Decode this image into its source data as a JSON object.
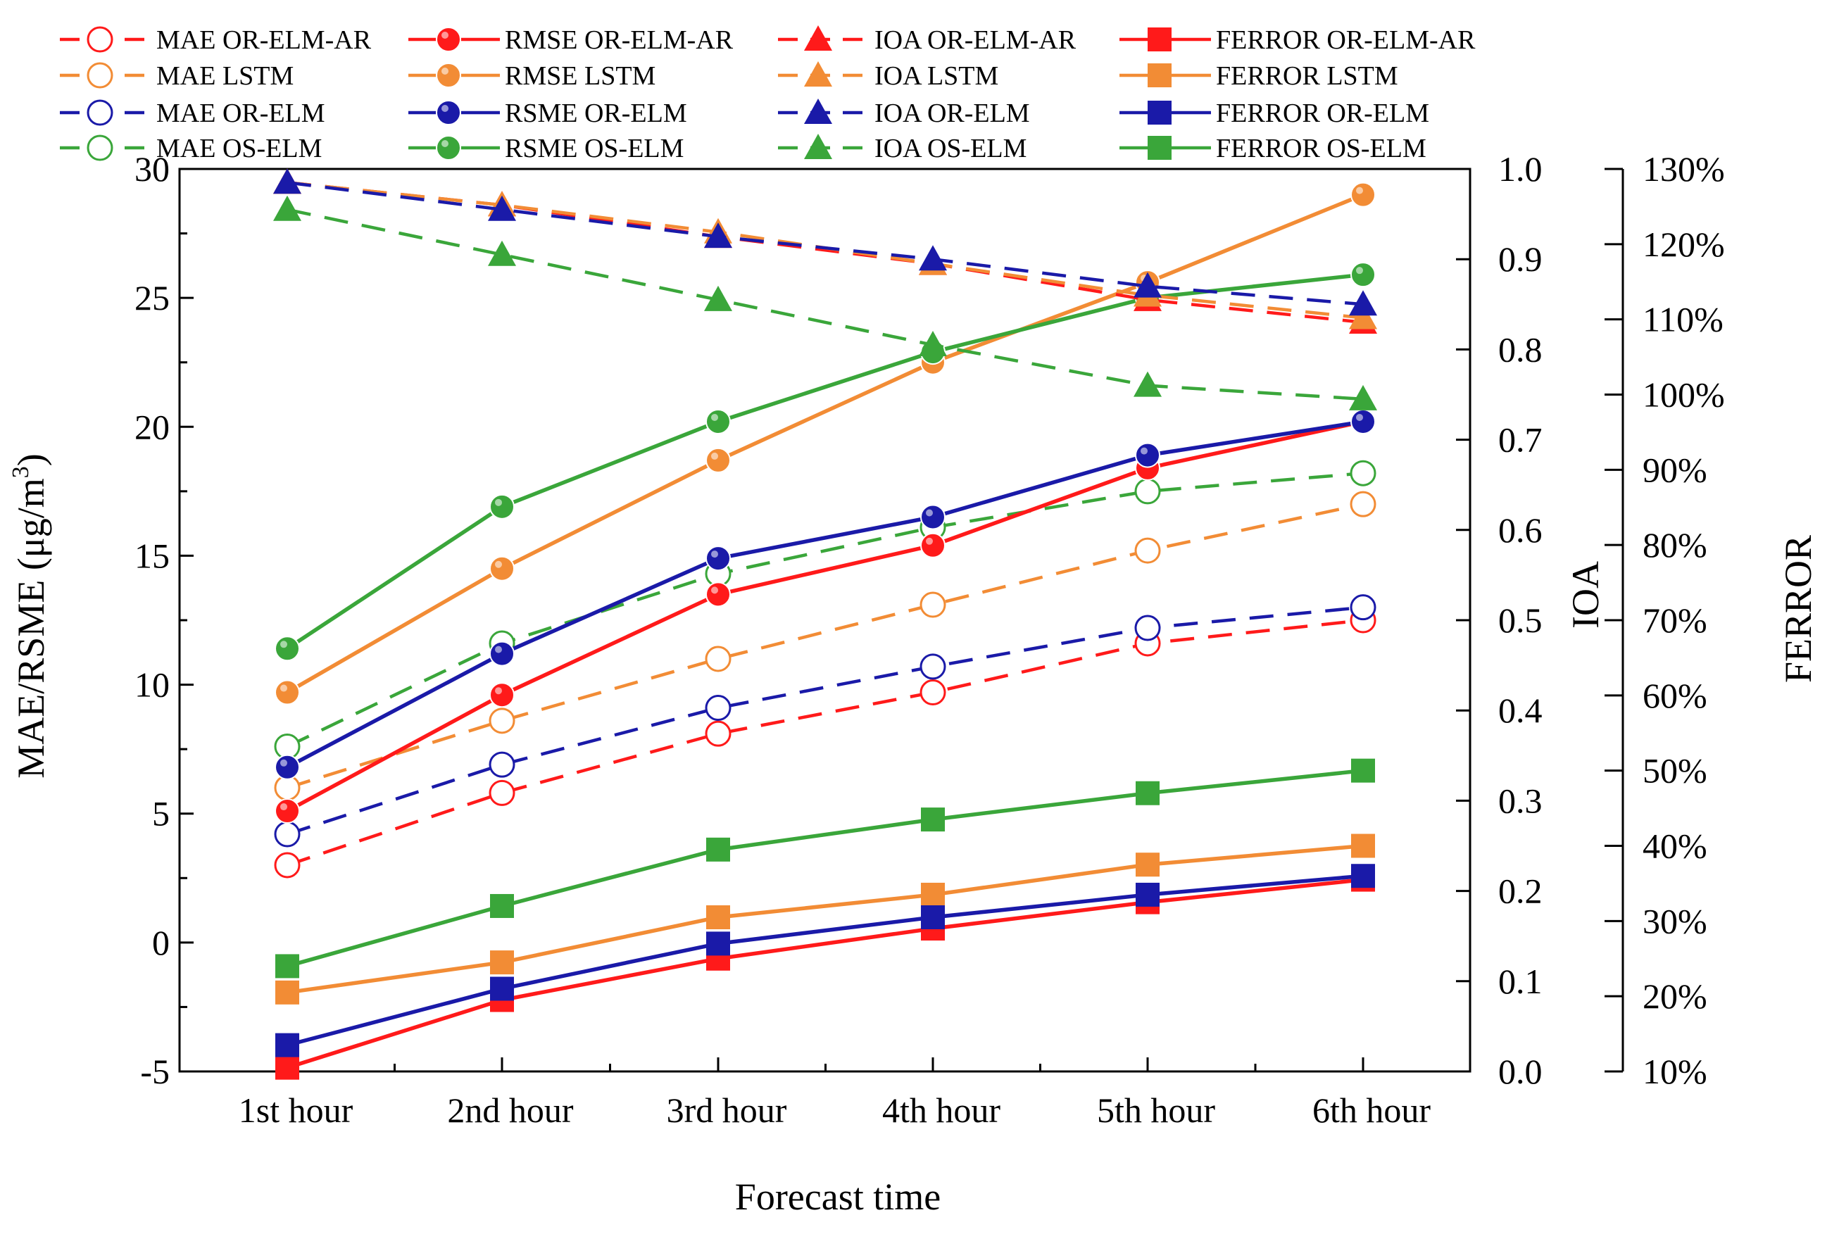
{
  "chart_data": {
    "type": "line",
    "title": "",
    "xlabel": "Forecast time",
    "ylabel_left": "MAE/RSME (μg/m",
    "ylabel_left_sup": "3",
    "ylabel_left_close": ")",
    "ylabel_ioa": "IOA",
    "ylabel_ferror": "FERROR",
    "categories": [
      "1st hour",
      "2nd hour",
      "3rd hour",
      "4th hour",
      "5th hour",
      "6th hour"
    ],
    "axes": {
      "left": {
        "min": -5,
        "max": 30,
        "ticks": [
          -5,
          0,
          5,
          10,
          15,
          20,
          25,
          30
        ],
        "labels": [
          "-5",
          "0",
          "5",
          "10",
          "15",
          "20",
          "25",
          "30"
        ]
      },
      "ioa": {
        "min": 0,
        "max": 1.0,
        "ticks": [
          0,
          0.1,
          0.2,
          0.3,
          0.4,
          0.5,
          0.6,
          0.7,
          0.8,
          0.9,
          1.0
        ],
        "labels": [
          "0.0",
          "0.1",
          "0.2",
          "0.3",
          "0.4",
          "0.5",
          "0.6",
          "0.7",
          "0.8",
          "0.9",
          "1.0"
        ]
      },
      "ferror": {
        "min": 10,
        "max": 130,
        "ticks": [
          10,
          20,
          30,
          40,
          50,
          60,
          70,
          80,
          90,
          100,
          110,
          120,
          130
        ],
        "labels": [
          "10%",
          "20%",
          "30%",
          "40%",
          "50%",
          "60%",
          "70%",
          "80%",
          "90%",
          "100%",
          "110%",
          "120%",
          "130%"
        ]
      }
    },
    "colors": {
      "red": "#ff1a1a",
      "orange": "#f28c35",
      "blue": "#1a1aa8",
      "green": "#3aa63a"
    },
    "series": [
      {
        "name": "MAE OR-ELM-AR",
        "axis": "left",
        "color": "red",
        "marker": "circle-open",
        "dash": true,
        "values": [
          3.0,
          5.8,
          8.1,
          9.7,
          11.6,
          12.5
        ]
      },
      {
        "name": "RMSE OR-ELM-AR",
        "axis": "left",
        "color": "red",
        "marker": "circle-filled",
        "dash": false,
        "values": [
          5.1,
          9.6,
          13.5,
          15.4,
          18.4,
          20.2
        ]
      },
      {
        "name": "IOA OR-ELM-AR",
        "axis": "ioa",
        "color": "red",
        "marker": "triangle",
        "dash": true,
        "values": [
          0.985,
          0.96,
          0.925,
          0.895,
          0.855,
          0.83
        ]
      },
      {
        "name": "FERROR OR-ELM-AR",
        "axis": "ferror",
        "color": "red",
        "marker": "square",
        "dash": false,
        "values": [
          10.5,
          19.5,
          25.0,
          29.0,
          32.5,
          35.5
        ]
      },
      {
        "name": "MAE  LSTM",
        "axis": "left",
        "color": "orange",
        "marker": "circle-open",
        "dash": true,
        "values": [
          6.0,
          8.6,
          11.0,
          13.1,
          15.2,
          17.0
        ]
      },
      {
        "name": "RMSE  LSTM",
        "axis": "left",
        "color": "orange",
        "marker": "circle-filled",
        "dash": false,
        "values": [
          9.7,
          14.5,
          18.7,
          22.5,
          25.6,
          29.0
        ]
      },
      {
        "name": "IOA LSTM",
        "axis": "ioa",
        "color": "orange",
        "marker": "triangle",
        "dash": true,
        "values": [
          0.985,
          0.96,
          0.93,
          0.895,
          0.86,
          0.835
        ]
      },
      {
        "name": "FERROR LSTM",
        "axis": "ferror",
        "color": "orange",
        "marker": "square",
        "dash": false,
        "values": [
          20.5,
          24.5,
          30.5,
          33.5,
          37.5,
          40.0
        ]
      },
      {
        "name": "MAE OR-ELM",
        "axis": "left",
        "color": "blue",
        "marker": "circle-open",
        "dash": true,
        "values": [
          4.2,
          6.9,
          9.1,
          10.7,
          12.2,
          13.0
        ]
      },
      {
        "name": "RSME OR-ELM",
        "axis": "left",
        "color": "blue",
        "marker": "circle-filled",
        "dash": false,
        "values": [
          6.8,
          11.2,
          14.9,
          16.5,
          18.9,
          20.2
        ]
      },
      {
        "name": "IOA OR-ELM",
        "axis": "ioa",
        "color": "blue",
        "marker": "triangle",
        "dash": true,
        "values": [
          0.985,
          0.955,
          0.925,
          0.9,
          0.87,
          0.85
        ]
      },
      {
        "name": "FERROR OR-ELM",
        "axis": "ferror",
        "color": "blue",
        "marker": "square",
        "dash": false,
        "values": [
          13.5,
          21.0,
          27.0,
          30.5,
          33.5,
          36.0
        ]
      },
      {
        "name": "MAE OS-ELM",
        "axis": "left",
        "color": "green",
        "marker": "circle-open",
        "dash": true,
        "values": [
          7.6,
          11.6,
          14.3,
          16.1,
          17.5,
          18.2
        ]
      },
      {
        "name": "RSME OS-ELM",
        "axis": "left",
        "color": "green",
        "marker": "circle-filled",
        "dash": false,
        "values": [
          11.4,
          16.9,
          20.2,
          22.9,
          25.0,
          25.9
        ]
      },
      {
        "name": "IOA OS-ELM",
        "axis": "ioa",
        "color": "green",
        "marker": "triangle",
        "dash": true,
        "values": [
          0.955,
          0.905,
          0.855,
          0.805,
          0.76,
          0.745
        ]
      },
      {
        "name": "FERROR OS-ELM",
        "axis": "ferror",
        "color": "green",
        "marker": "square",
        "dash": false,
        "values": [
          24.0,
          32.0,
          39.5,
          43.5,
          47.0,
          50.0
        ]
      }
    ],
    "legend": {
      "position": "top",
      "rows": [
        [
          "MAE OR-ELM-AR",
          "RMSE OR-ELM-AR",
          "IOA OR-ELM-AR",
          "FERROR OR-ELM-AR"
        ],
        [
          "MAE  LSTM",
          "RMSE  LSTM",
          "IOA LSTM",
          "FERROR LSTM"
        ],
        [
          "MAE OR-ELM",
          "RSME OR-ELM",
          "IOA OR-ELM",
          "FERROR OR-ELM"
        ],
        [
          "MAE OS-ELM",
          "RSME OS-ELM",
          "IOA OS-ELM",
          "FERROR OS-ELM"
        ]
      ]
    }
  }
}
